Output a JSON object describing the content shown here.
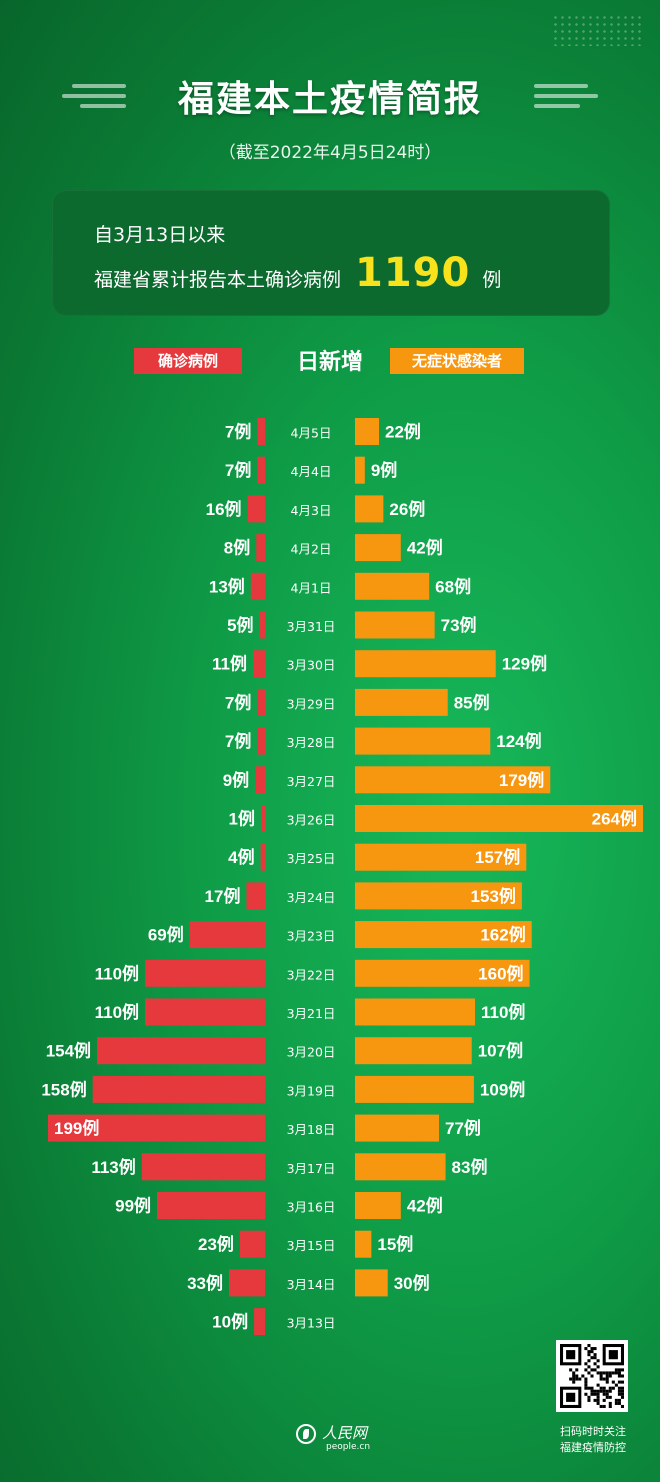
{
  "header": {
    "title": "福建本土疫情简报",
    "subtitle": "（截至2022年4月5日24时）"
  },
  "summary": {
    "line1": "自3月13日以来",
    "line2_prefix": "福建省累计报告本土确诊病例",
    "total": "1190",
    "unit": "例"
  },
  "legend": {
    "confirmed": "确诊病例",
    "center": "日新增",
    "asymptomatic": "无症状感染者"
  },
  "colors": {
    "confirmed": "#e5393d",
    "asymptomatic": "#f7960f",
    "highlight": "#f7e21b"
  },
  "chart_data": {
    "type": "bar",
    "orientation": "horizontal-diverging",
    "unit": "例",
    "categories": [
      "4月5日",
      "4月4日",
      "4月3日",
      "4月2日",
      "4月1日",
      "3月31日",
      "3月30日",
      "3月29日",
      "3月28日",
      "3月27日",
      "3月26日",
      "3月25日",
      "3月24日",
      "3月23日",
      "3月22日",
      "3月21日",
      "3月20日",
      "3月19日",
      "3月18日",
      "3月17日",
      "3月16日",
      "3月15日",
      "3月14日",
      "3月13日"
    ],
    "series": [
      {
        "name": "确诊病例",
        "values": [
          7,
          7,
          16,
          8,
          13,
          5,
          11,
          7,
          7,
          9,
          1,
          4,
          17,
          69,
          110,
          110,
          154,
          158,
          199,
          113,
          99,
          23,
          33,
          10
        ]
      },
      {
        "name": "无症状感染者",
        "values": [
          22,
          9,
          26,
          42,
          68,
          73,
          129,
          85,
          124,
          179,
          264,
          157,
          153,
          162,
          160,
          110,
          107,
          109,
          77,
          83,
          42,
          15,
          30,
          null
        ]
      }
    ]
  },
  "footer": {
    "logo_name": "人民网",
    "logo_domain": "people.cn",
    "qr_caption_line1": "扫码时时关注",
    "qr_caption_line2": "福建疫情防控"
  }
}
